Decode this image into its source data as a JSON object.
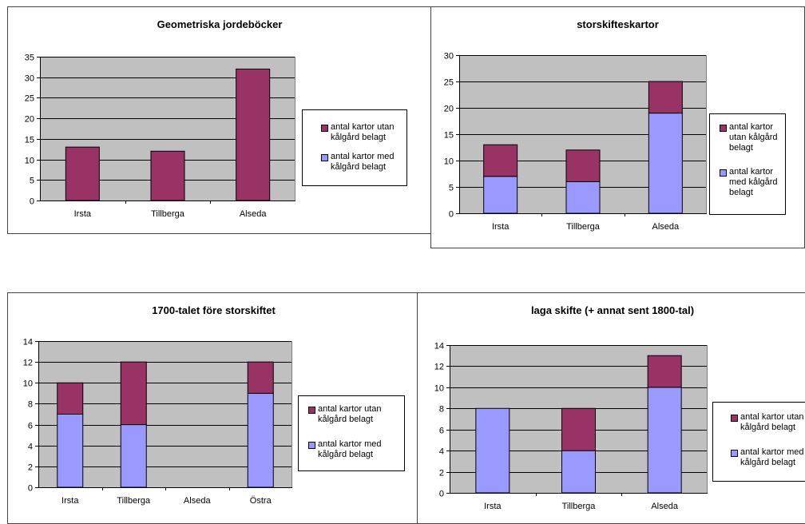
{
  "colors": {
    "utan": "#993366",
    "med": "#9999ff",
    "plot_bg": "#c0c0c0",
    "gridline": "#000000"
  },
  "chart_data": [
    {
      "type": "bar",
      "stacked": true,
      "title": "Geometriska jordeböcker",
      "categories": [
        "Irsta",
        "Tillberga",
        "Alseda"
      ],
      "ylim": [
        0,
        35
      ],
      "yticks": [
        0,
        5,
        10,
        15,
        20,
        25,
        30,
        35
      ],
      "grid": true,
      "legend_position": "right",
      "legend": [
        "antal kartor utan kålgård belagt",
        "antal kartor med kålgård belagt"
      ],
      "series": [
        {
          "key": "med",
          "name": "antal kartor med kålgård belagt",
          "values": [
            0,
            0,
            0
          ]
        },
        {
          "key": "utan",
          "name": "antal kartor utan kålgård belagt",
          "values": [
            13,
            12,
            32
          ]
        }
      ]
    },
    {
      "type": "bar",
      "stacked": true,
      "title": "storskifteskartor",
      "categories": [
        "Irsta",
        "Tillberga",
        "Alseda"
      ],
      "ylim": [
        0,
        30
      ],
      "yticks": [
        0,
        5,
        10,
        15,
        20,
        25,
        30
      ],
      "grid": true,
      "legend_position": "right",
      "legend": [
        "antal kartor utan kålgård belagt",
        "antal kartor med kålgård belagt"
      ],
      "series": [
        {
          "key": "med",
          "name": "antal kartor med kålgård belagt",
          "values": [
            7,
            6,
            19
          ]
        },
        {
          "key": "utan",
          "name": "antal kartor utan kålgård belagt",
          "values": [
            6,
            6,
            6
          ]
        }
      ]
    },
    {
      "type": "bar",
      "stacked": true,
      "title": "1700-talet före storskiftet",
      "categories": [
        "Irsta",
        "Tillberga",
        "Alseda",
        "Östra"
      ],
      "ylim": [
        0,
        14
      ],
      "yticks": [
        0,
        2,
        4,
        6,
        8,
        10,
        12,
        14
      ],
      "grid": true,
      "legend_position": "right",
      "legend": [
        "antal kartor utan kålgård belagt",
        "antal kartor med kålgård belagt"
      ],
      "series": [
        {
          "key": "med",
          "name": "antal kartor med kålgård belagt",
          "values": [
            7,
            6,
            0,
            9
          ]
        },
        {
          "key": "utan",
          "name": "antal kartor utan kålgård belagt",
          "values": [
            3,
            6,
            0,
            3
          ]
        }
      ]
    },
    {
      "type": "bar",
      "stacked": true,
      "title": "laga skifte (+ annat sent 1800-tal)",
      "categories": [
        "Irsta",
        "Tillberga",
        "Alseda"
      ],
      "ylim": [
        0,
        14
      ],
      "yticks": [
        0,
        2,
        4,
        6,
        8,
        10,
        12,
        14
      ],
      "grid": true,
      "legend_position": "right",
      "legend": [
        "antal kartor utan kålgård belagt",
        "antal kartor med kålgård belagt"
      ],
      "series": [
        {
          "key": "med",
          "name": "antal kartor med kålgård belagt",
          "values": [
            8,
            4,
            10
          ]
        },
        {
          "key": "utan",
          "name": "antal kartor utan kålgård belagt",
          "values": [
            0,
            4,
            3
          ]
        }
      ]
    }
  ]
}
